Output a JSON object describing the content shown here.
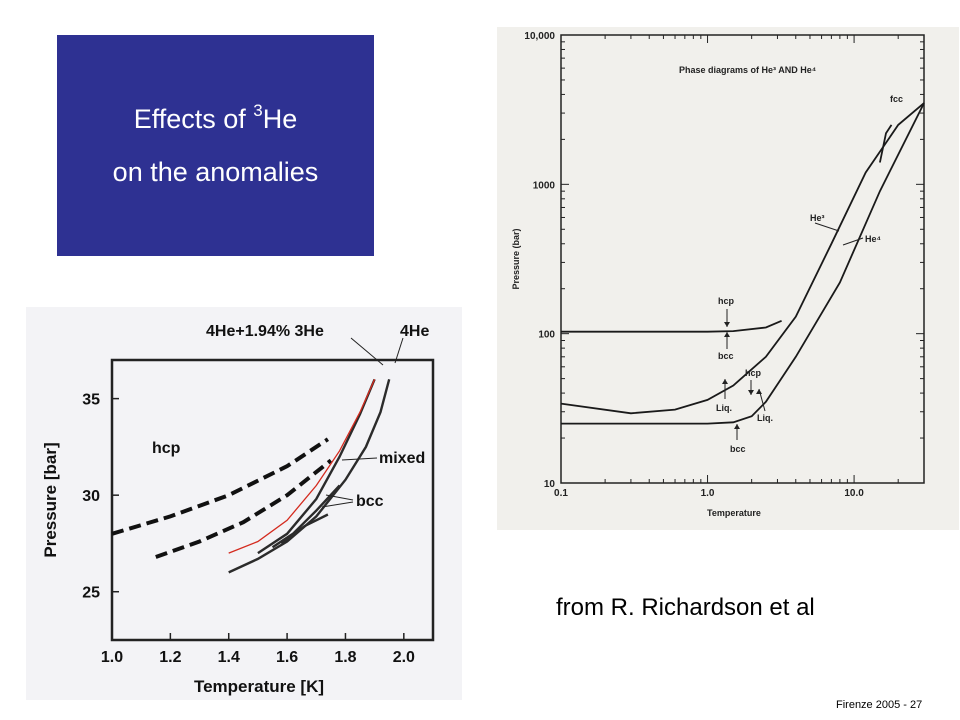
{
  "slide": {
    "title_line1_pre": "Effects of ",
    "title_line1_sup": "3",
    "title_line1_post": "He",
    "title_line2": "on the anomalies",
    "credit": "from R. Richardson et al",
    "footer": "Firenze  2005 - 27",
    "accent_color": "#2e3192"
  },
  "chart_data": [
    {
      "type": "line",
      "title": "",
      "xlabel": "Temperature [K]",
      "ylabel": "Pressure [bar]",
      "xlim": [
        1.0,
        2.1
      ],
      "ylim": [
        22.5,
        37
      ],
      "x_ticks": [
        "1.0",
        "1.2",
        "1.4",
        "1.6",
        "1.8",
        "2.0"
      ],
      "y_ticks": [
        "25",
        "30",
        "35"
      ],
      "legend_labels": {
        "mix": "4He+1.94% 3He",
        "pure": "4He"
      },
      "annotations": {
        "hcp": "hcp",
        "mixed": "mixed",
        "bcc": "bcc"
      },
      "series": [
        {
          "id": "dashed_upper",
          "style": "dashed",
          "x": [
            1.0,
            1.2,
            1.4,
            1.6,
            1.74
          ],
          "y": [
            28.0,
            28.9,
            30.0,
            31.5,
            32.9
          ]
        },
        {
          "id": "dashed_lower",
          "style": "dashed",
          "x": [
            1.15,
            1.3,
            1.45,
            1.6,
            1.75
          ],
          "y": [
            26.8,
            27.6,
            28.6,
            30.0,
            31.8
          ]
        },
        {
          "id": "pure_4He",
          "style": "solid",
          "x": [
            1.4,
            1.5,
            1.6,
            1.7,
            1.8,
            1.87,
            1.92,
            1.95
          ],
          "y": [
            26.0,
            26.7,
            27.6,
            28.9,
            30.8,
            32.5,
            34.3,
            36.0
          ]
        },
        {
          "id": "mix_melting",
          "style": "solid",
          "x": [
            1.5,
            1.6,
            1.7,
            1.78,
            1.85,
            1.9
          ],
          "y": [
            27.0,
            28.0,
            29.8,
            32.0,
            34.2,
            36.0
          ]
        },
        {
          "id": "mixed_boundary_upper",
          "style": "solid",
          "x": [
            1.55,
            1.62,
            1.7,
            1.78
          ],
          "y": [
            27.3,
            28.0,
            29.2,
            30.5
          ]
        },
        {
          "id": "mixed_boundary_lower",
          "style": "solid",
          "x": [
            1.58,
            1.66,
            1.74
          ],
          "y": [
            27.5,
            28.4,
            29.0
          ]
        },
        {
          "id": "fit_red",
          "style": "red",
          "x": [
            1.4,
            1.5,
            1.6,
            1.7,
            1.78,
            1.85,
            1.9
          ],
          "y": [
            27.0,
            27.6,
            28.7,
            30.5,
            32.3,
            34.3,
            36.0
          ]
        }
      ]
    },
    {
      "type": "line",
      "title": "Phase diagrams of He³ AND He⁴",
      "xlabel": "Temperature",
      "ylabel": "Pressure (bar)",
      "xscale": "log",
      "yscale": "log",
      "xlim": [
        0.1,
        30
      ],
      "ylim": [
        10,
        10000
      ],
      "x_ticks": [
        "0.1",
        "1.0",
        "10.0"
      ],
      "y_ticks": [
        "10",
        "100",
        "1000",
        "10,000"
      ],
      "labels": {
        "He3": "He³",
        "He4": "He⁴",
        "fcc": "fcc",
        "hcp_top": "hcp",
        "bcc_top": "bcc",
        "liq_left": "Liq.",
        "hcp_mid": "hcp",
        "liq_right": "Liq.",
        "bcc_bottom": "bcc"
      },
      "series": [
        {
          "id": "He3_melting",
          "x": [
            0.1,
            0.3,
            0.6,
            1.0,
            1.5,
            2.5,
            4.0,
            7.0,
            12.0,
            20.0,
            30.0
          ],
          "y": [
            34,
            29.3,
            31,
            36,
            45,
            70,
            130,
            400,
            1200,
            2500,
            3500
          ]
        },
        {
          "id": "He3_solid_boundary",
          "x": [
            0.1,
            0.5,
            1.0,
            1.5,
            2.5,
            3.2
          ],
          "y": [
            103,
            103,
            103,
            104,
            110,
            122
          ]
        },
        {
          "id": "He4_melting",
          "x": [
            0.1,
            0.5,
            1.0,
            1.5,
            2.0,
            2.5,
            4.0,
            8.0,
            15.0,
            30.0
          ],
          "y": [
            25,
            25,
            25,
            25.5,
            28,
            35,
            70,
            220,
            900,
            3500
          ]
        },
        {
          "id": "fcc_branch",
          "x": [
            15.0,
            16.5,
            18.0
          ],
          "y": [
            1400,
            2200,
            2500
          ]
        }
      ]
    }
  ]
}
